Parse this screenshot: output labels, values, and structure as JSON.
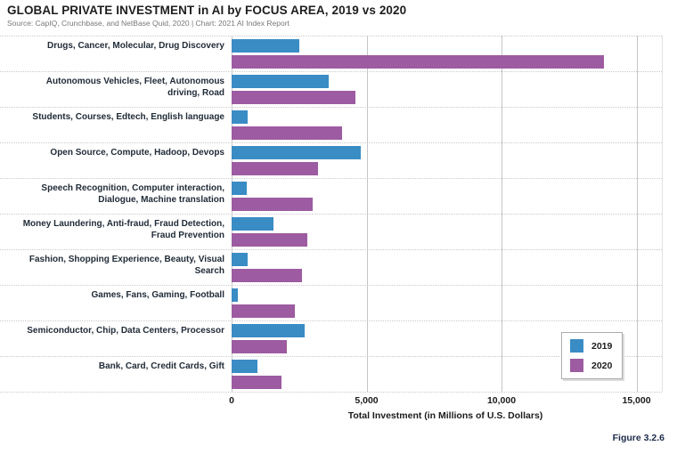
{
  "header": {
    "title": "GLOBAL PRIVATE INVESTMENT in AI by FOCUS AREA, 2019 vs 2020",
    "source": "Source: CapIQ, Crunchbase, and NetBase Quid, 2020 | Chart: 2021 AI Index Report"
  },
  "figure_label": "Figure 3.2.6",
  "chart_data": {
    "type": "bar",
    "orientation": "horizontal",
    "title": "GLOBAL PRIVATE INVESTMENT in AI by FOCUS AREA, 2019 vs 2020",
    "xlabel": "Total Investment (in Millions of U.S. Dollars)",
    "xlim": [
      0,
      16000
    ],
    "xticks": [
      0,
      5000,
      10000,
      15000
    ],
    "xtick_labels": [
      "0",
      "5,000",
      "10,000",
      "15,000"
    ],
    "grid": {
      "vertical_gridlines": "solid",
      "category_separators": "dotted",
      "horizontal_value_grid": false
    },
    "legend": {
      "position": "inside-right-lower",
      "entries": [
        "2019",
        "2020"
      ]
    },
    "categories": [
      "Drugs, Cancer, Molecular, Drug Discovery",
      "Autonomous Vehicles, Fleet, Autonomous driving, Road",
      "Students, Courses, Edtech, English language",
      "Open Source, Compute, Hadoop, Devops",
      "Speech Recognition, Computer interaction, Dialogue, Machine translation",
      "Money Laundering, Anti-fraud, Fraud Detection, Fraud Prevention",
      "Fashion, Shopping Experience, Beauty, Visual Search",
      "Games, Fans, Gaming, Football",
      "Semiconductor, Chip, Data Centers, Processor",
      "Bank, Card, Credit Cards, Gift"
    ],
    "category_lines": [
      [
        "Drugs, Cancer, Molecular, Drug Discovery"
      ],
      [
        "Autonomous Vehicles, Fleet, Autonomous",
        "driving, Road"
      ],
      [
        "Students, Courses, Edtech, English language"
      ],
      [
        "Open Source, Compute, Hadoop, Devops"
      ],
      [
        "Speech Recognition, Computer interaction,",
        "Dialogue, Machine translation"
      ],
      [
        "Money Laundering, Anti-fraud, Fraud Detection,",
        "Fraud Prevention"
      ],
      [
        "Fashion, Shopping Experience, Beauty, Visual",
        "Search"
      ],
      [
        "Games, Fans, Gaming, Football"
      ],
      [
        "Semiconductor, Chip, Data Centers, Processor"
      ],
      [
        "Bank, Card, Credit Cards, Gift"
      ]
    ],
    "series": [
      {
        "name": "2019",
        "color": "#3A8CC5",
        "values": [
          2500,
          3600,
          600,
          4800,
          550,
          1550,
          600,
          230,
          2700,
          950
        ]
      },
      {
        "name": "2020",
        "color": "#9D5BA1",
        "values": [
          13800,
          4600,
          4100,
          3200,
          3000,
          2800,
          2600,
          2350,
          2050,
          1850
        ]
      }
    ]
  }
}
